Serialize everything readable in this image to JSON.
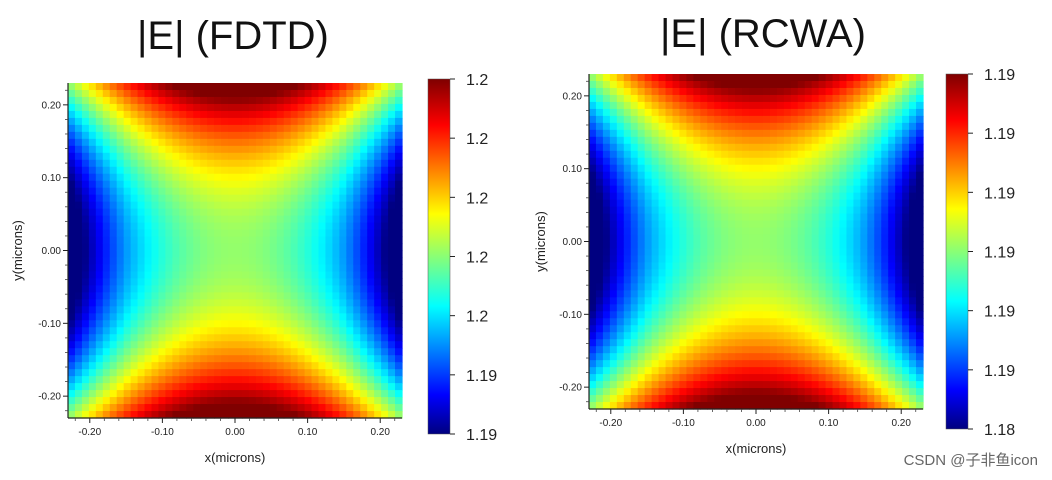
{
  "watermark": "CSDN @子非鱼icon",
  "chart_data": [
    {
      "type": "heatmap",
      "title": "|E| (FDTD)",
      "xlabel": "x(microns)",
      "ylabel": "y(microns)",
      "xlim": [
        -0.23,
        0.23
      ],
      "ylim": [
        -0.23,
        0.23
      ],
      "x_ticks": [
        "-0.20",
        "-0.10",
        "0.00",
        "0.10",
        "0.20"
      ],
      "y_ticks": [
        "0.20",
        "0.10",
        "0.00",
        "-0.10",
        "-0.20"
      ],
      "colorbar_labels": [
        "1.2",
        "1.2",
        "1.2",
        "1.2",
        "1.2",
        "1.19",
        "1.19"
      ],
      "colormap": "jet",
      "grid": false
    },
    {
      "type": "heatmap",
      "title": "|E| (RCWA)",
      "xlabel": "x(microns)",
      "ylabel": "y(microns)",
      "xlim": [
        -0.23,
        0.23
      ],
      "ylim": [
        -0.23,
        0.23
      ],
      "x_ticks": [
        "-0.20",
        "-0.10",
        "0.00",
        "0.10",
        "0.20"
      ],
      "y_ticks": [
        "0.20",
        "0.10",
        "0.00",
        "-0.10",
        "-0.20"
      ],
      "colorbar_labels": [
        "1.19",
        "1.19",
        "1.19",
        "1.19",
        "1.19",
        "1.19",
        "1.18"
      ],
      "colormap": "jet",
      "grid": false
    }
  ]
}
